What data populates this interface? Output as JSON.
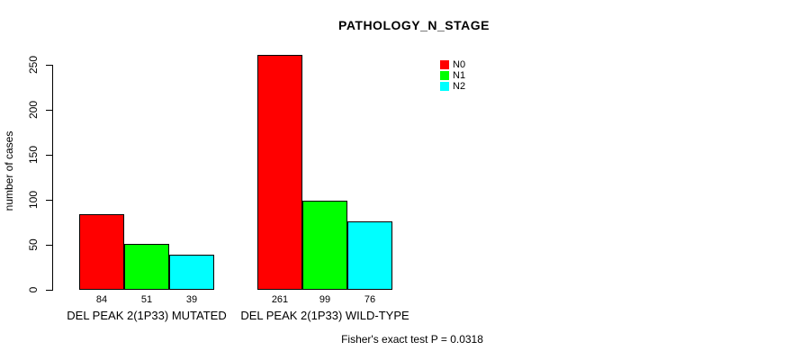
{
  "chart_data": {
    "type": "bar",
    "title": "PATHOLOGY_N_STAGE",
    "ylabel": "number of cases",
    "xlabel": "",
    "ylim": [
      0,
      250
    ],
    "yticks": [
      0,
      50,
      100,
      150,
      200,
      250
    ],
    "grid": false,
    "categories": [
      "DEL PEAK 2(1P33) MUTATED",
      "DEL PEAK 2(1P33) WILD-TYPE"
    ],
    "series": [
      {
        "name": "N0",
        "color": "#ff0000",
        "values": [
          84,
          261
        ]
      },
      {
        "name": "N1",
        "color": "#00ff00",
        "values": [
          51,
          99
        ]
      },
      {
        "name": "N2",
        "color": "#00ffff",
        "values": [
          39,
          76
        ]
      }
    ],
    "bar_value_labels": [
      [
        "84",
        "51",
        "39"
      ],
      [
        "261",
        "99",
        "76"
      ]
    ],
    "legend": {
      "position": "top-right",
      "entries": [
        {
          "label": "N0",
          "color": "#ff0000"
        },
        {
          "label": "N1",
          "color": "#00ff00"
        },
        {
          "label": "N2",
          "color": "#00ffff"
        }
      ]
    },
    "annotation": "Fisher's exact test P = 0.0318"
  }
}
